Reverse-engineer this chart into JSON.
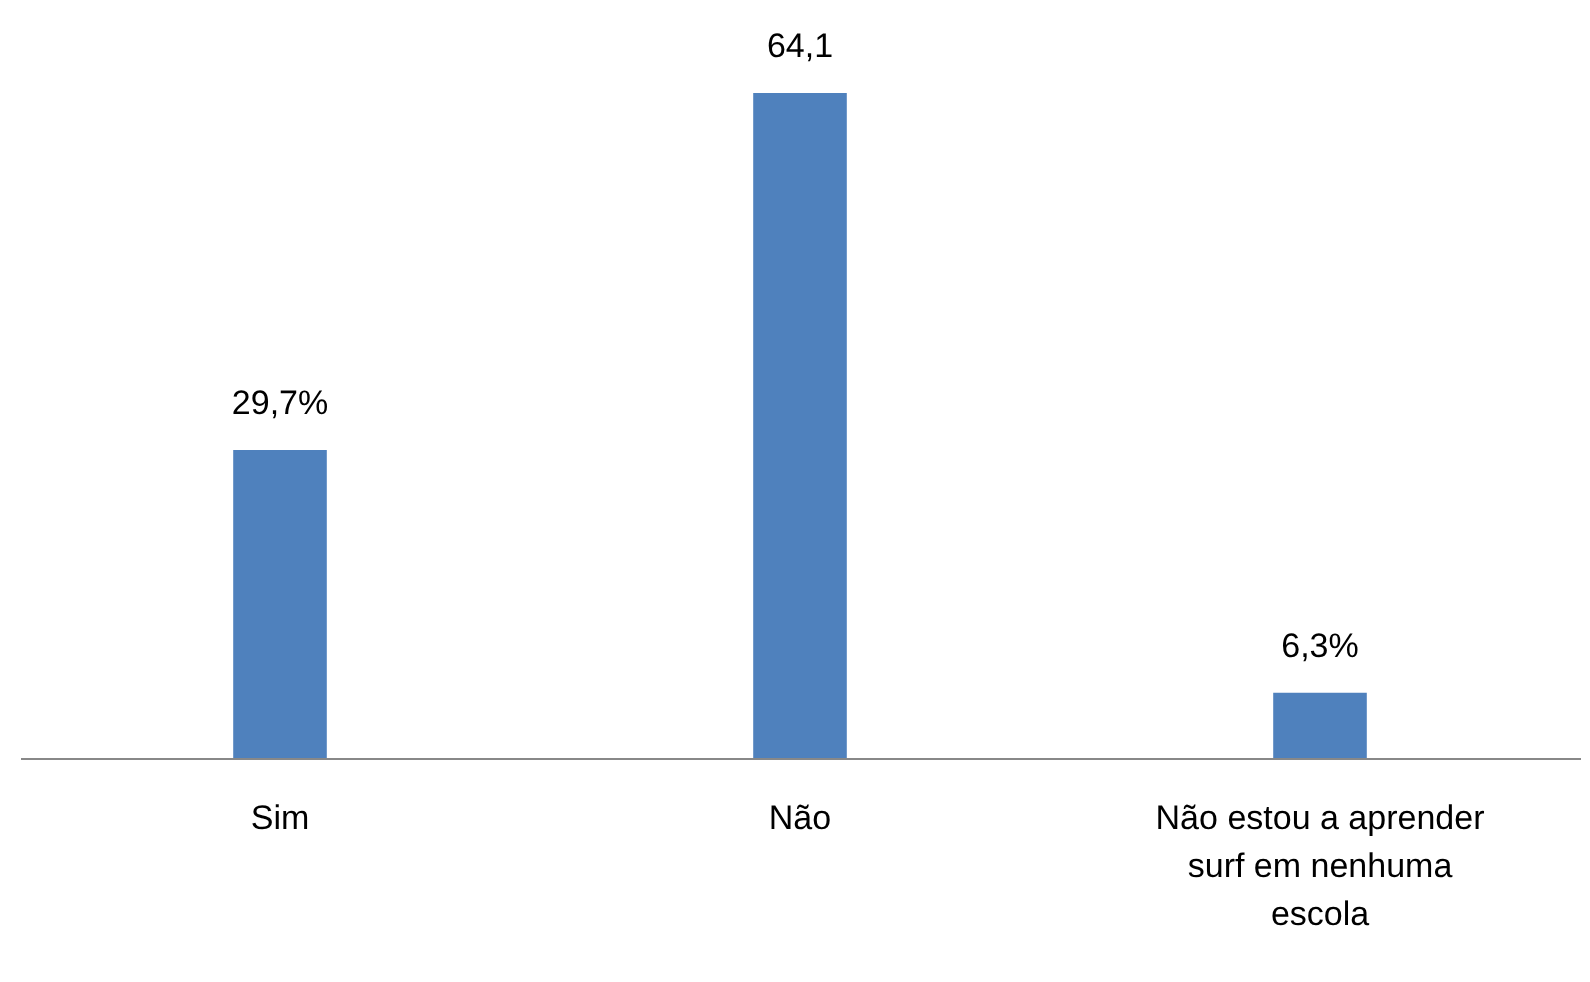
{
  "chart_data": {
    "type": "bar",
    "categories": [
      "Sim",
      "Não",
      "Não estou a aprender surf em nenhuma escola"
    ],
    "values": [
      29.7,
      64.1,
      6.3
    ],
    "value_labels": [
      "29,7%",
      "64,1",
      "6,3%"
    ],
    "color": "#4f81bd",
    "grid": false
  }
}
